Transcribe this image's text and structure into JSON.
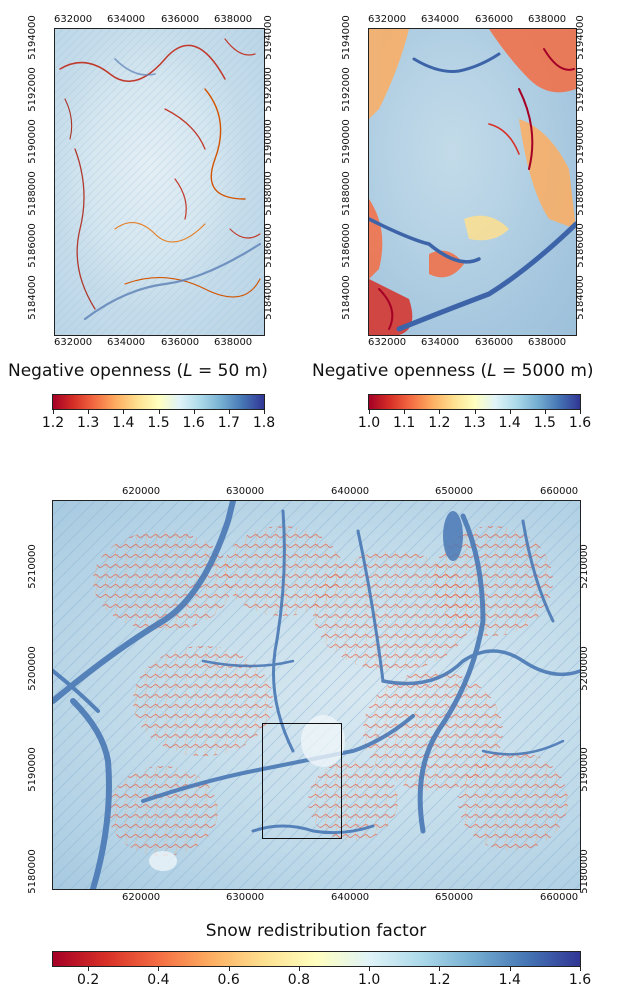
{
  "panels": {
    "top_left": {
      "x_ticks": [
        "632000",
        "634000",
        "636000",
        "638000"
      ],
      "y_ticks": [
        "5184000",
        "5186000",
        "5188000",
        "5190000",
        "5192000",
        "5194000"
      ],
      "title": "Negative openness (",
      "title_symbol": "L",
      "title_eq": " = 50 m)",
      "colorbar": {
        "ticks": [
          "1.2",
          "1.3",
          "1.4",
          "1.5",
          "1.6",
          "1.7",
          "1.8"
        ],
        "range": [
          1.2,
          1.8
        ]
      }
    },
    "top_right": {
      "x_ticks": [
        "632000",
        "634000",
        "636000",
        "638000"
      ],
      "y_ticks": [
        "5184000",
        "5186000",
        "5188000",
        "5190000",
        "5192000",
        "5194000"
      ],
      "title": "Negative openness (",
      "title_symbol": "L",
      "title_eq": " = 5000 m)",
      "colorbar": {
        "ticks": [
          "1.0",
          "1.1",
          "1.2",
          "1.3",
          "1.4",
          "1.5",
          "1.6"
        ],
        "range": [
          1.0,
          1.6
        ]
      }
    },
    "bottom": {
      "x_ticks": [
        "620000",
        "630000",
        "640000",
        "650000",
        "660000"
      ],
      "y_ticks": [
        "5180000",
        "5190000",
        "5200000",
        "5210000"
      ],
      "title": "Snow redistribution factor",
      "colorbar": {
        "ticks": [
          "0.2",
          "0.4",
          "0.6",
          "0.8",
          "1.0",
          "1.2",
          "1.4",
          "1.6"
        ],
        "range": [
          0.1,
          1.6
        ]
      },
      "inset_box": {
        "x_range": [
          631000,
          639000
        ],
        "y_range": [
          5182000,
          5194000
        ]
      }
    }
  },
  "colors": {
    "low": "#a50026",
    "mid_low": "#f46d43",
    "mid": "#ffffbf",
    "mid_high": "#abd9e9",
    "high": "#313695",
    "valley": "#4a7ab8",
    "terrain": "#cfe4ef"
  }
}
